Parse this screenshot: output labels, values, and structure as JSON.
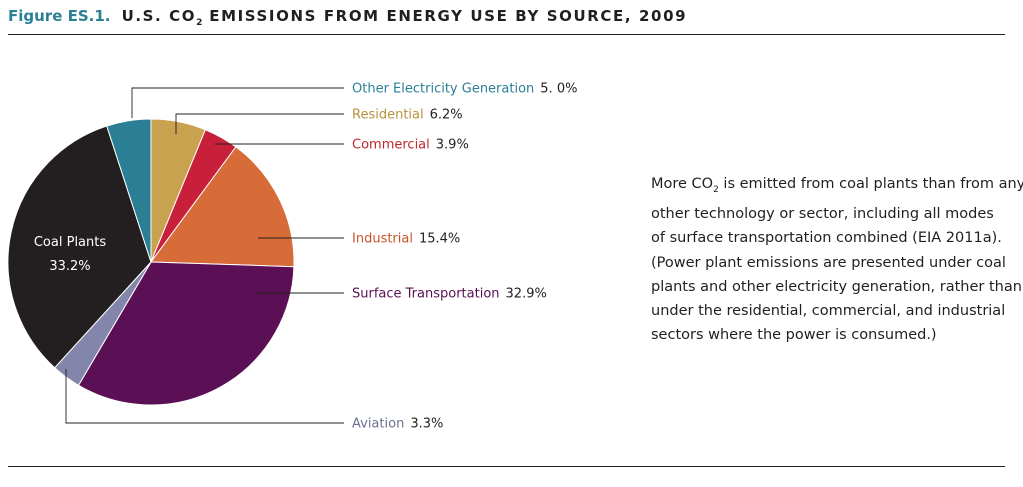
{
  "header": {
    "figure_number": "Figure ES.1.",
    "title_prefix": "U.S. CO",
    "title_subscript": "2",
    "title_suffix": " EMISSIONS FROM ENERGY USE BY SOURCE, 2009"
  },
  "chart_data": {
    "type": "pie",
    "title": "U.S. CO2 EMISSIONS FROM ENERGY USE BY SOURCE, 2009",
    "slices": [
      {
        "label": "Residential",
        "value": 6.2,
        "value_label": "6.2%",
        "color": "#c9a24f"
      },
      {
        "label": "Commercial",
        "value": 3.9,
        "value_label": "3.9%",
        "color": "#c8203a"
      },
      {
        "label": "Industrial",
        "value": 15.4,
        "value_label": "15.4%",
        "color": "#d86c39"
      },
      {
        "label": "Surface Transportation",
        "value": 32.9,
        "value_label": "32.9%",
        "color": "#5b0f54"
      },
      {
        "label": "Aviation",
        "value": 3.3,
        "value_label": "3.3%",
        "color": "#8386aa"
      },
      {
        "label": "Coal Plants",
        "value": 33.2,
        "value_label": "33.2%",
        "color": "#231f20"
      },
      {
        "label": "Other Electricity Generation",
        "value": 5.0,
        "value_label": "5. 0%",
        "color": "#2a7f95"
      }
    ],
    "label_colors": {
      "Other Electricity Generation": "#2c7f95",
      "Residential": "#b8913f",
      "Commercial": "#c1272d",
      "Industrial": "#c8552a",
      "Surface Transportation": "#5b0f54",
      "Aviation": "#6d7194"
    }
  },
  "note": {
    "line1_pre": "More CO",
    "line1_sub": "2",
    "line1_post": " is emitted from coal plants than from any",
    "line2": "other technology or sector, including all modes",
    "line3": "of surface transportation combined (EIA 2011a).",
    "line4": "(Power plant emissions are presented under coal",
    "line5": "plants and other electricity generation, rather than",
    "line6": "under the residential, commercial, and industrial",
    "line7": "sectors where the power is consumed.)"
  }
}
